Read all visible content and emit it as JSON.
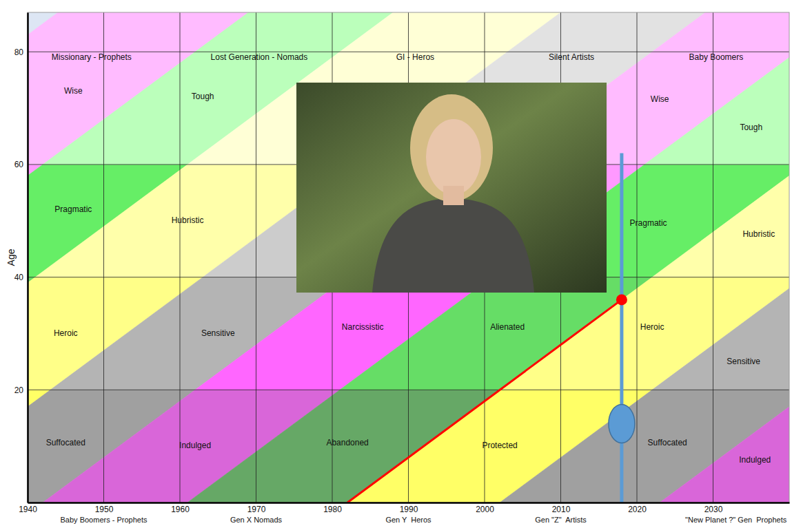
{
  "chart_data": {
    "type": "band",
    "ylabel": "Age",
    "xlim": [
      1940,
      2040
    ],
    "xticks": [
      1940,
      1950,
      1960,
      1970,
      1980,
      1990,
      2000,
      2010,
      2020,
      2030
    ],
    "ylim": [
      0,
      87
    ],
    "yticks": [
      20,
      40,
      60,
      80
    ],
    "grid": true,
    "stage_ages": [
      0,
      20,
      40,
      60
    ],
    "generations": [
      {
        "name": null,
        "born": [
          1820,
          1857
        ],
        "colors": [
          null,
          null,
          null,
          "#dde6f4"
        ]
      },
      {
        "name": "Missionary - Prophets",
        "born": [
          1857,
          1882
        ],
        "colors": [
          "#d966d9",
          "#ff66ff",
          "#ff99ff",
          "#ffbbff"
        ]
      },
      {
        "name": "Lost Generation - Nomads",
        "born": [
          1882,
          1901
        ],
        "colors": [
          "#66a866",
          "#66dd66",
          "#66ee66",
          "#bbffbb"
        ]
      },
      {
        "name": "GI - Heros",
        "born": [
          1901,
          1923
        ],
        "colors": [
          "#ffff66",
          "#ffff88",
          "#ffffaa",
          "#ffffd6"
        ]
      },
      {
        "name": "Silent Artists",
        "born": [
          1923,
          1942
        ],
        "colors": [
          "#a0a0a0",
          "#b4b4b4",
          "#cccccc",
          "#e2e2e2"
        ]
      },
      {
        "name": "Baby Boomers",
        "caption": "Baby Boomers - Prophets",
        "caption_x": 1950,
        "born": [
          1942,
          1961
        ],
        "colors": [
          "#d966d9",
          "#ff66ff",
          "#ff99ff",
          "#ffbbff"
        ]
      },
      {
        "caption": "Gen X Nomads",
        "caption_x": 1970,
        "born": [
          1961,
          1982
        ],
        "colors": [
          "#66a866",
          "#66dd66",
          "#66ee66",
          "#bbffbb"
        ]
      },
      {
        "caption": "Gen Y  Heros",
        "caption_x": 1990,
        "born": [
          1982,
          2002
        ],
        "colors": [
          "#ffff66",
          "#ffff88",
          "#ffffaa",
          "#ffffd6"
        ]
      },
      {
        "caption": "Gen \"Z\"  Artists",
        "caption_x": 2010,
        "born": [
          2002,
          2023
        ],
        "colors": [
          "#a0a0a0",
          "#b4b4b4",
          "#cccccc",
          "#e2e2e2"
        ]
      },
      {
        "caption": "\"New Planet ?\" Gen  Prophets",
        "caption_x": 2033,
        "born": [
          2023,
          2045
        ],
        "colors": [
          "#d966d9",
          "#ff66ff",
          "#ff99ff",
          "#ffbbff"
        ]
      }
    ],
    "labels": [
      {
        "text": "Wise",
        "x": 1946,
        "y": 73
      },
      {
        "text": "Tough",
        "x": 1963,
        "y": 72
      },
      {
        "text": "Pragmatic",
        "x": 1946,
        "y": 52
      },
      {
        "text": "Hubristic",
        "x": 1961,
        "y": 50
      },
      {
        "text": "Heroic",
        "x": 1945,
        "y": 30
      },
      {
        "text": "Sensitive",
        "x": 1965,
        "y": 30
      },
      {
        "text": "Narcissistic",
        "x": 1984,
        "y": 31
      },
      {
        "text": "Alienated",
        "x": 2003,
        "y": 31
      },
      {
        "text": "Heroic",
        "x": 2022,
        "y": 31
      },
      {
        "text": "Sensitive",
        "x": 2034,
        "y": 25
      },
      {
        "text": "Suffocated",
        "x": 1945,
        "y": 10.5
      },
      {
        "text": "Indulged",
        "x": 1962,
        "y": 10
      },
      {
        "text": "Abandoned",
        "x": 1982,
        "y": 10.5
      },
      {
        "text": "Protected",
        "x": 2002,
        "y": 10
      },
      {
        "text": "Suffocated",
        "x": 2024,
        "y": 10.5
      },
      {
        "text": "Indulged",
        "x": 2035.5,
        "y": 7.5
      },
      {
        "text": "Wise",
        "x": 2023,
        "y": 71.5
      },
      {
        "text": "Tough",
        "x": 2035,
        "y": 66.5
      },
      {
        "text": "Pragmatic",
        "x": 2021.5,
        "y": 49.5
      },
      {
        "text": "Hubristic",
        "x": 2036,
        "y": 47.5
      }
    ],
    "series": [
      {
        "type": "line",
        "color": "#ff0000",
        "x": [
          1982,
          2018
        ],
        "values": [
          0,
          36
        ]
      },
      {
        "type": "scatter",
        "color": "#ff0000",
        "marker": "circle",
        "x": [
          2018
        ],
        "values": [
          36
        ]
      },
      {
        "type": "line",
        "color": "#5b9bd5",
        "x": [
          2018,
          2018
        ],
        "values": [
          0,
          62
        ]
      },
      {
        "type": "scatter",
        "color": "#5b9bd5",
        "marker": "ellipse",
        "x": [
          2018
        ],
        "values": [
          14
        ]
      }
    ]
  }
}
